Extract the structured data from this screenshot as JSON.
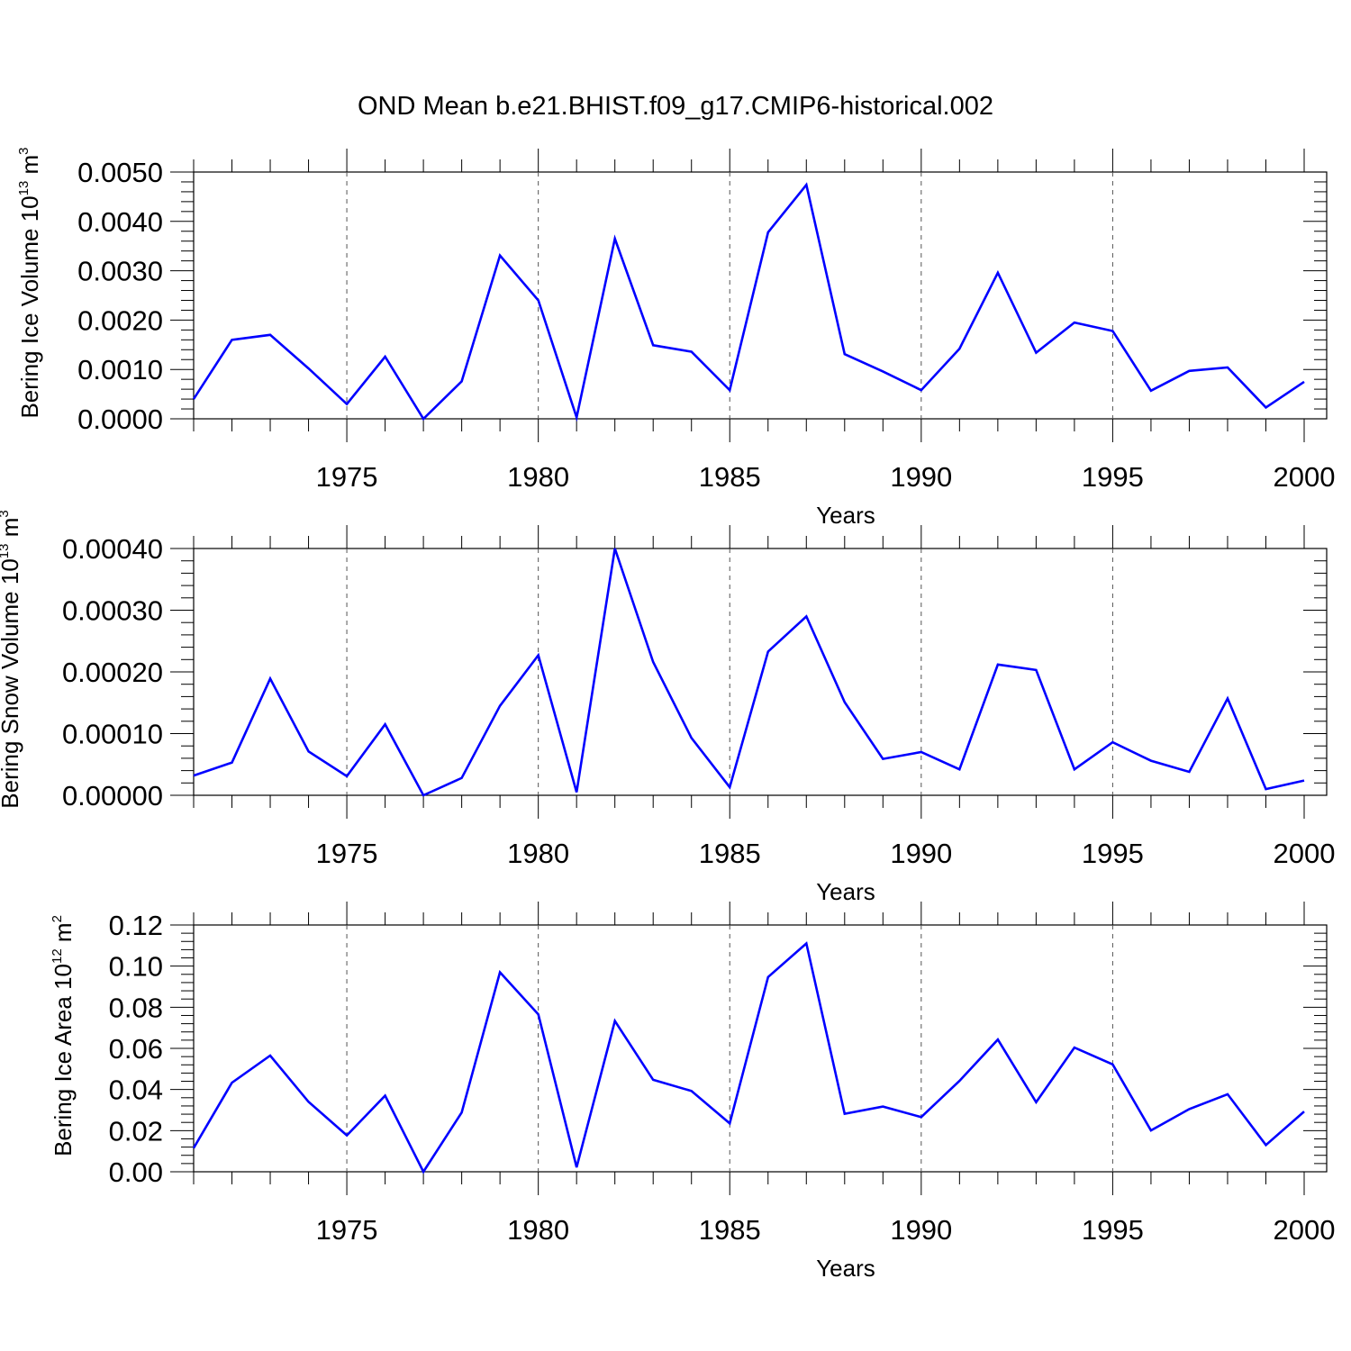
{
  "title": "OND Mean b.e21.BHIST.f09_g17.CMIP6-historical.002",
  "colors": {
    "series": "#0000ff",
    "axes": "#000000",
    "grid": "#555555"
  },
  "chart_data": [
    {
      "type": "line",
      "xlabel": "Years",
      "ylabel": {
        "text": "Bering Ice Volume 10",
        "sup": "13",
        "unit": " m",
        "unit_sup": "3"
      },
      "xlim": [
        1971,
        2000
      ],
      "ylim": [
        0,
        0.005
      ],
      "xticks": [
        "1975",
        "1980",
        "1985",
        "1990",
        "1995",
        "2000"
      ],
      "yticks": [
        "0.0000",
        "0.0010",
        "0.0020",
        "0.0030",
        "0.0040",
        "0.0050"
      ],
      "grid": "vertical dashed at major x ticks",
      "x": [
        1971,
        1972,
        1973,
        1974,
        1975,
        1976,
        1977,
        1978,
        1979,
        1980,
        1981,
        1982,
        1983,
        1984,
        1985,
        1986,
        1987,
        1988,
        1989,
        1990,
        1991,
        1992,
        1993,
        1994,
        1995,
        1996,
        1997,
        1998,
        1999,
        2000
      ],
      "values": [
        0.0004,
        0.0016,
        0.0017,
        0.00102,
        0.0003,
        0.00126,
        0.0,
        0.00076,
        0.00331,
        0.0024,
        3e-05,
        0.00365,
        0.00149,
        0.00136,
        0.00058,
        0.00378,
        0.00474,
        0.00131,
        0.00096,
        0.00058,
        0.00142,
        0.00296,
        0.00134,
        0.00195,
        0.00178,
        0.00057,
        0.00097,
        0.00104,
        0.00023,
        0.00075
      ]
    },
    {
      "type": "line",
      "xlabel": "Years",
      "ylabel": {
        "text": "Bering Snow Volume 10",
        "sup": "13",
        "unit": " m",
        "unit_sup": "3"
      },
      "xlim": [
        1971,
        2000
      ],
      "ylim": [
        0,
        0.0004
      ],
      "xticks": [
        "1975",
        "1980",
        "1985",
        "1990",
        "1995",
        "2000"
      ],
      "yticks": [
        "0.00000",
        "0.00010",
        "0.00020",
        "0.00030",
        "0.00040"
      ],
      "grid": "vertical dashed at major x ticks",
      "x": [
        1971,
        1972,
        1973,
        1974,
        1975,
        1976,
        1977,
        1978,
        1979,
        1980,
        1981,
        1982,
        1983,
        1984,
        1985,
        1986,
        1987,
        1988,
        1989,
        1990,
        1991,
        1992,
        1993,
        1994,
        1995,
        1996,
        1997,
        1998,
        1999,
        2000
      ],
      "values": [
        3.2e-05,
        5.3e-05,
        0.000189,
        7.1e-05,
        3.1e-05,
        0.000115,
        0.0,
        2.8e-05,
        0.000145,
        0.000227,
        5e-06,
        0.0004,
        0.000216,
        9.3e-05,
        1.3e-05,
        0.000233,
        0.00029,
        0.000151,
        5.9e-05,
        7e-05,
        4.2e-05,
        0.000212,
        0.000203,
        4.2e-05,
        8.6e-05,
        5.6e-05,
        3.8e-05,
        0.000157,
        1e-05,
        2.4e-05
      ]
    },
    {
      "type": "line",
      "xlabel": "Years",
      "ylabel": {
        "text": "Bering Ice Area 10",
        "sup": "12",
        "unit": " m",
        "unit_sup": "2"
      },
      "xlim": [
        1971,
        2000
      ],
      "ylim": [
        0,
        0.12
      ],
      "xticks": [
        "1975",
        "1980",
        "1985",
        "1990",
        "1995",
        "2000"
      ],
      "yticks": [
        "0.00",
        "0.02",
        "0.04",
        "0.06",
        "0.08",
        "0.10",
        "0.12"
      ],
      "grid": "vertical dashed at major x ticks",
      "x": [
        1971,
        1972,
        1973,
        1974,
        1975,
        1976,
        1977,
        1978,
        1979,
        1980,
        1981,
        1982,
        1983,
        1984,
        1985,
        1986,
        1987,
        1988,
        1989,
        1990,
        1991,
        1992,
        1993,
        1994,
        1995,
        1996,
        1997,
        1998,
        1999,
        2000
      ],
      "values": [
        0.0115,
        0.0433,
        0.0565,
        0.034,
        0.0177,
        0.037,
        0.0,
        0.0288,
        0.097,
        0.0765,
        0.0022,
        0.0733,
        0.0447,
        0.0393,
        0.0235,
        0.0947,
        0.111,
        0.0282,
        0.0317,
        0.0266,
        0.0442,
        0.0643,
        0.0338,
        0.0604,
        0.0522,
        0.0201,
        0.0305,
        0.0377,
        0.013,
        0.0293
      ]
    }
  ]
}
